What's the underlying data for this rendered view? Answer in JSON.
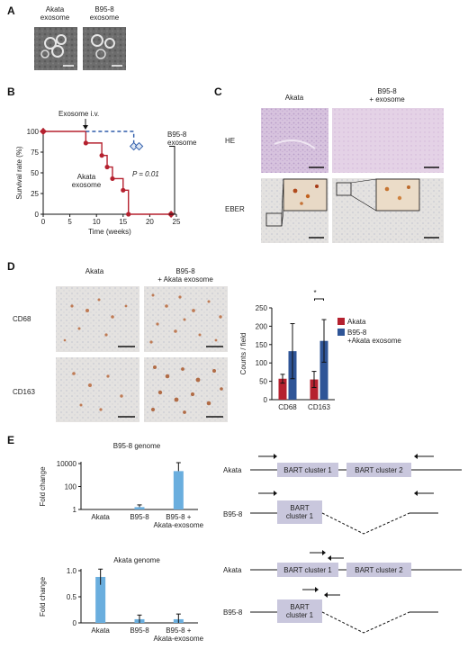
{
  "panels": {
    "A": {
      "letter": "A",
      "image_labels": [
        "Akata\nexosome",
        "B95-8\nexosome"
      ]
    },
    "B": {
      "letter": "B",
      "annotation_injection": "Exosome i.v.",
      "series_label_b958": "B95-8\nexosome",
      "series_label_akata": "Akata\nexosome",
      "pvalue": "P = 0.01"
    },
    "C": {
      "letter": "C",
      "col_labels": [
        "Akata",
        "B95-8\n+ exosome"
      ],
      "row_labels": [
        "HE",
        "EBER"
      ]
    },
    "D": {
      "letter": "D",
      "col_labels": [
        "Akata",
        "B95-8\n+ Akata exosome"
      ],
      "row_labels": [
        "CD68",
        "CD163"
      ],
      "significance": "*"
    },
    "E": {
      "letter": "E",
      "diagram": {
        "akata_label": "Akata",
        "b958_label": "B95-8",
        "cluster1": "BART cluster 1",
        "cluster2": "BART cluster 2",
        "cluster1_short": "BART\ncluster 1"
      }
    }
  },
  "chart_data": [
    {
      "id": "survival",
      "type": "line",
      "xlabel": "Time (weeks)",
      "ylabel": "Survival rate (%)",
      "xlim": [
        0,
        25
      ],
      "ylim": [
        0,
        100
      ],
      "xticks": [
        "0",
        "5",
        "10",
        "15",
        "20",
        "25"
      ],
      "yticks": [
        "0",
        "25",
        "50",
        "75",
        "100"
      ],
      "series": [
        {
          "name": "Akata exosome",
          "color": "#b5212f",
          "style": "solid",
          "x": [
            0,
            8,
            8,
            11,
            11,
            12,
            12,
            13,
            13,
            15,
            15,
            16,
            16,
            24,
            24
          ],
          "y": [
            100,
            100,
            86,
            86,
            71,
            71,
            57,
            57,
            43,
            43,
            29,
            29,
            0,
            0,
            0
          ],
          "points_x": [
            0,
            8,
            11,
            12,
            13,
            15,
            16,
            24
          ],
          "points_y": [
            100,
            86,
            71,
            57,
            43,
            29,
            0,
            0
          ]
        },
        {
          "name": "B95-8 exosome",
          "color": "#2e5caa",
          "style": "dashed",
          "x": [
            8,
            17,
            17
          ],
          "y": [
            100,
            100,
            82
          ],
          "points_x": [
            17,
            18
          ],
          "points_y": [
            82,
            82
          ]
        }
      ]
    },
    {
      "id": "counts",
      "type": "bar",
      "ylabel": "Counts / field",
      "ylim": [
        0,
        250
      ],
      "yticks": [
        "0",
        "50",
        "100",
        "150",
        "200",
        "250"
      ],
      "categories": [
        "CD68",
        "CD163"
      ],
      "legend": [
        "Akata",
        "B95-8\n+Akata exosome"
      ],
      "series": [
        {
          "name": "Akata",
          "color": "#b5212f",
          "values": [
            57,
            55
          ],
          "errors": [
            12,
            22
          ]
        },
        {
          "name": "B95-8\n+Akata exosome",
          "color": "#2f5597",
          "values": [
            132,
            160
          ],
          "errors": [
            75,
            58
          ]
        }
      ]
    },
    {
      "id": "b958-genome",
      "type": "bar",
      "title": "B95-8 genome",
      "ylabel": "Fold change",
      "scale": "log",
      "ylim": [
        1,
        10000
      ],
      "yticks": [
        "1",
        "100",
        "10000"
      ],
      "categories": [
        "Akata",
        "B95-8",
        "B95-8 +\nAkata-exosome"
      ],
      "values": [
        1,
        1.6,
        2200
      ],
      "errors_upper": [
        1,
        2.5,
        12000
      ],
      "color": "#6aaede"
    },
    {
      "id": "akata-genome",
      "type": "bar",
      "title": "Akata genome",
      "ylabel": "Fold change",
      "ylim": [
        0,
        1.0
      ],
      "yticks": [
        "0",
        "0.5",
        "1.0"
      ],
      "categories": [
        "Akata",
        "B95-8",
        "B95-8 +\nAkata-exosome"
      ],
      "values": [
        0.88,
        0.07,
        0.07
      ],
      "errors": [
        0.15,
        0.08,
        0.1
      ],
      "color": "#6aaede"
    }
  ]
}
